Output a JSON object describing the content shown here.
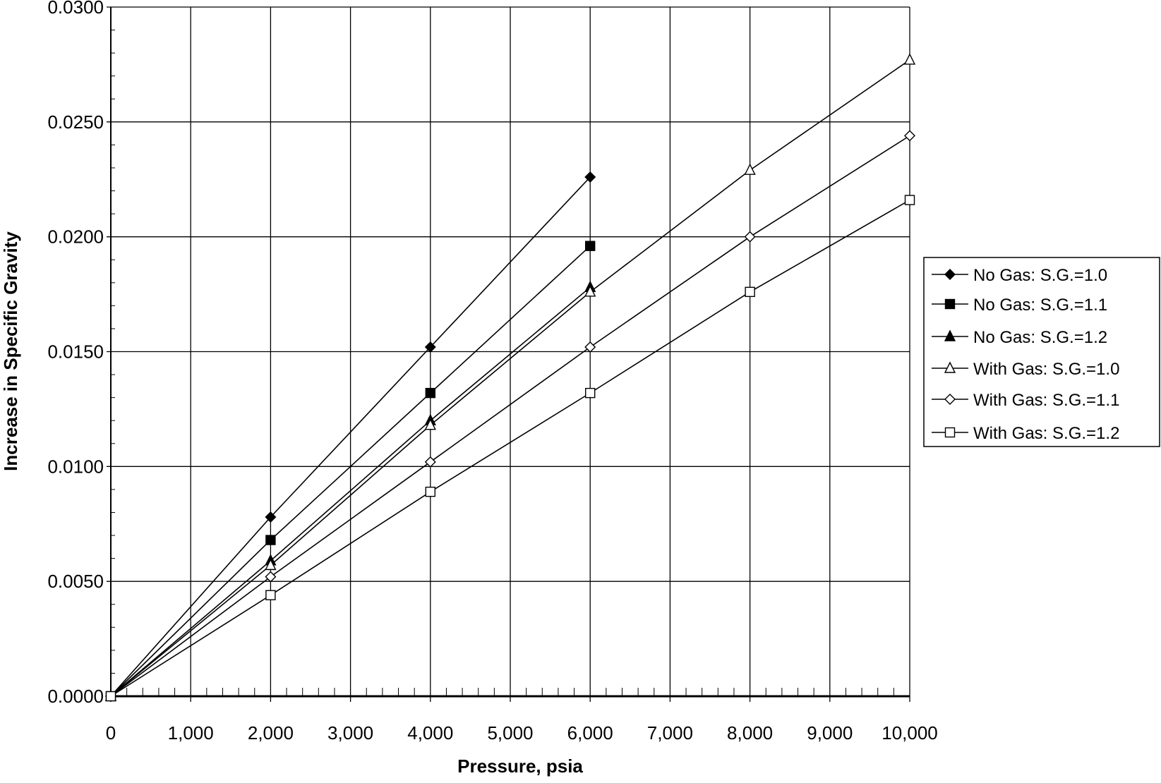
{
  "chart_data": {
    "type": "line",
    "title": "",
    "xlabel": "Pressure, psia",
    "ylabel": "Increase in Specific Gravity",
    "xlim": [
      0,
      10000
    ],
    "ylim": [
      0,
      0.03
    ],
    "grid": true,
    "legend_position": "right",
    "x_ticks": [
      0,
      1000,
      2000,
      3000,
      4000,
      5000,
      6000,
      7000,
      8000,
      9000,
      10000
    ],
    "x_tick_labels": [
      "0",
      "1,000",
      "2,000",
      "3,000",
      "4,000",
      "5,000",
      "6,000",
      "7,000",
      "8,000",
      "9,000",
      "10,000"
    ],
    "y_ticks": [
      0,
      0.005,
      0.01,
      0.015,
      0.02,
      0.025,
      0.03
    ],
    "y_tick_labels": [
      "0.0000",
      "0.0050",
      "0.0100",
      "0.0150",
      "0.0200",
      "0.0250",
      "0.0300"
    ],
    "series": [
      {
        "name": "No Gas: S.G.=1.0",
        "marker": "diamond-filled",
        "x": [
          0,
          2000,
          4000,
          6000
        ],
        "values": [
          0,
          0.0078,
          0.0152,
          0.0226
        ]
      },
      {
        "name": "No Gas: S.G.=1.1",
        "marker": "square-filled",
        "x": [
          0,
          2000,
          4000,
          6000
        ],
        "values": [
          0,
          0.0068,
          0.0132,
          0.0196
        ]
      },
      {
        "name": "No Gas: S.G.=1.2",
        "marker": "triangle-filled",
        "x": [
          0,
          2000,
          4000,
          6000
        ],
        "values": [
          0,
          0.0059,
          0.012,
          0.0178
        ]
      },
      {
        "name": "With Gas: S.G.=1.0",
        "marker": "triangle-open",
        "x": [
          0,
          2000,
          4000,
          6000,
          8000,
          10000
        ],
        "values": [
          0,
          0.0057,
          0.0118,
          0.0176,
          0.0229,
          0.0277
        ]
      },
      {
        "name": "With Gas: S.G.=1.1",
        "marker": "diamond-open",
        "x": [
          0,
          2000,
          4000,
          6000,
          8000,
          10000
        ],
        "values": [
          0,
          0.0052,
          0.0102,
          0.0152,
          0.02,
          0.0244
        ]
      },
      {
        "name": "With Gas: S.G.=1.2",
        "marker": "square-open",
        "x": [
          0,
          2000,
          4000,
          6000,
          8000,
          10000
        ],
        "values": [
          0,
          0.0044,
          0.0089,
          0.0132,
          0.0176,
          0.0216
        ]
      }
    ]
  }
}
